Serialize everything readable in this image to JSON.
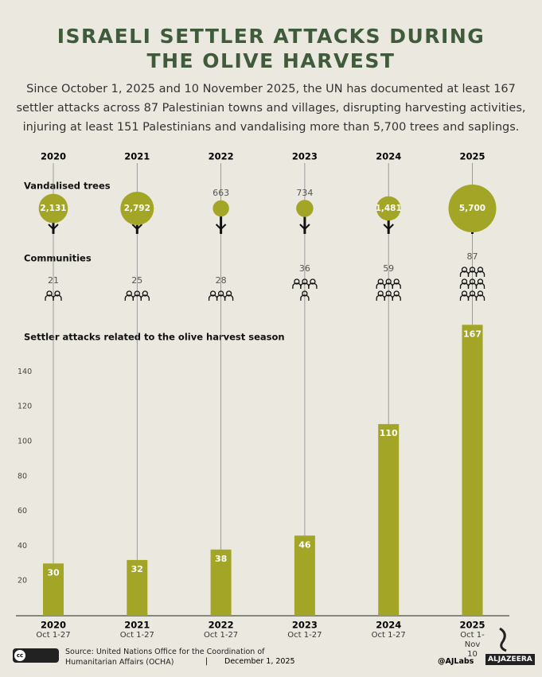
{
  "chart_data": {
    "type": "bar",
    "title": "ISRAELI SETTLER ATTACKS DURING THE OLIVE HARVEST",
    "subtitle": "Since October 1, 2025 and 10 November 2025,  the UN has documented at least 167 settler attacks across 87 Palestinian towns and villages, disrupting harvesting activities, injuring at least 151 Palestinians and vandalising more than 5,700 trees and saplings.",
    "categories": [
      "2020",
      "2021",
      "2022",
      "2023",
      "2024",
      "2025"
    ],
    "periods": [
      "Oct 1-27",
      "Oct 1-27",
      "Oct 1-27",
      "Oct 1-27",
      "Oct 1-27",
      "Oct 1- Nov 10"
    ],
    "trees": {
      "label": "Vandalised trees",
      "values": [
        2131,
        2792,
        663,
        734,
        1481,
        5700
      ],
      "value_labels": [
        "2,131",
        "2,792",
        "663",
        "734",
        "1,481",
        "5,700"
      ]
    },
    "communities": {
      "label": "Communities",
      "values": [
        21,
        25,
        28,
        36,
        59,
        87
      ]
    },
    "attacks_label": "Settler attacks related to the olive harvest season",
    "values": [
      30,
      32,
      38,
      46,
      110,
      167
    ],
    "color": "#a2a526",
    "ylim": [
      0,
      170
    ],
    "yticks": [
      20,
      40,
      60,
      80,
      100,
      120,
      140
    ],
    "source": "Source: United Nations Office for the Coordination of Humanitarian Affairs (OCHA)",
    "separator": "|",
    "date": "December 1, 2025",
    "handle": "@AJLabs",
    "brand": "ALJAZEERA"
  }
}
